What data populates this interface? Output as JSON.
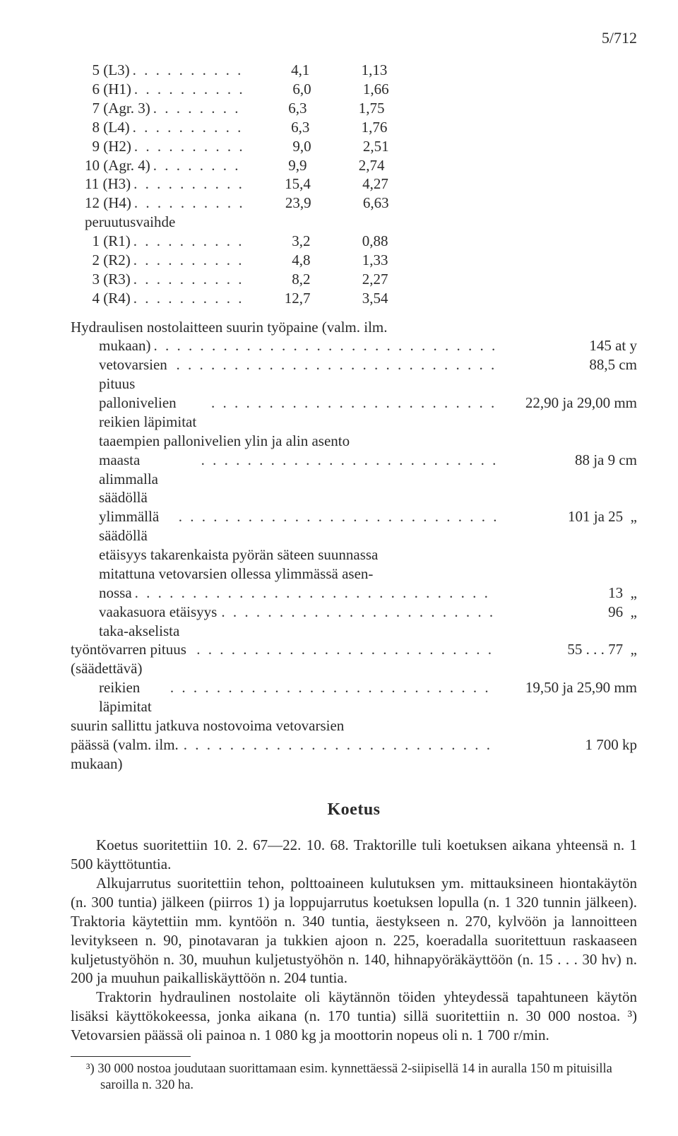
{
  "page_number": "5/712",
  "gear_table": {
    "rows": [
      {
        "label": "  5 (L3)",
        "dots": ". . . . . . . . . .",
        "a": "4,1",
        "b": "1,13"
      },
      {
        "label": "  6 (H1)",
        "dots": ". . . . . . . . . .",
        "a": "6,0",
        "b": "1,66"
      },
      {
        "label": "  7 (Agr. 3)",
        "dots": ". . . . . . . .",
        "a": "6,3",
        "b": "1,75"
      },
      {
        "label": "  8 (L4)",
        "dots": ". . . . . . . . . .",
        "a": "6,3",
        "b": "1,76"
      },
      {
        "label": "  9 (H2)",
        "dots": ". . . . . . . . . .",
        "a": "9,0",
        "b": "2,51"
      },
      {
        "label": "10 (Agr. 4)",
        "dots": ". . . . . . . .",
        "a": "9,9",
        "b": "2,74"
      },
      {
        "label": "11 (H3)",
        "dots": ". . . . . . . . . .",
        "a": "15,4",
        "b": "4,27"
      },
      {
        "label": "12 (H4)",
        "dots": ". . . . . . . . . .",
        "a": "23,9",
        "b": "6,63"
      }
    ],
    "reverse_header": "peruutusvaihde",
    "reverse_rows": [
      {
        "label": "  1 (R1)",
        "dots": ". . . . . . . . . .",
        "a": "3,2",
        "b": "0,88"
      },
      {
        "label": "  2 (R2)",
        "dots": ". . . . . . . . . .",
        "a": "4,8",
        "b": "1,33"
      },
      {
        "label": "  3 (R3)",
        "dots": ". . . . . . . . . .",
        "a": "8,2",
        "b": "2,27"
      },
      {
        "label": "  4 (R4)",
        "dots": ". . . . . . . . . .",
        "a": "12,7",
        "b": "3,54"
      }
    ]
  },
  "params": {
    "head": "Hydraulisen nostolaitteen suurin työpaine (valm. ilm.",
    "rows": [
      {
        "indent": true,
        "label": "mukaan)",
        "val": "145 at y"
      },
      {
        "indent": true,
        "label": "vetovarsien pituus",
        "val": "88,5 cm"
      },
      {
        "indent": true,
        "label": "pallonivelien reikien läpimitat",
        "val": "22,90 ja 29,00 mm"
      },
      {
        "indent": true,
        "label": "taaempien  pallonivelien  ylin  ja  alin  asento",
        "nowrap": true
      },
      {
        "indent": true,
        "label": "maasta alimmalla säädöllä",
        "val": "88 ja 9 cm"
      },
      {
        "indent": true,
        "label": "ylimmällä säädöllä",
        "val": "101 ja 25  „"
      },
      {
        "indent": true,
        "label": "etäisyys takarenkaista pyörän säteen suunnassa",
        "nowrap": true
      },
      {
        "indent": true,
        "label": "mitattuna vetovarsien ollessa ylimmässä asen-",
        "nowrap": true
      },
      {
        "indent": true,
        "label": "nossa",
        "val": "13  „"
      },
      {
        "indent": true,
        "label": "vaakasuora etäisyys taka-akselista",
        "val": "96  „"
      },
      {
        "indent": false,
        "label": "työntövarren pituus (säädettävä)",
        "val": "55 . . . 77  „"
      },
      {
        "indent": true,
        "label": "reikien läpimitat",
        "val": "19,50 ja 25,90 mm"
      },
      {
        "indent": false,
        "label": "suurin sallittu jatkuva nostovoima vetovarsien",
        "nowrap": true
      },
      {
        "indent": false,
        "label": "päässä (valm. ilm. mukaan)",
        "val": "1 700 kp"
      }
    ]
  },
  "section_title": "Koetus",
  "body_paragraphs": [
    "Koetus suoritettiin 10. 2. 67—22. 10. 68. Traktorille tuli koetuksen aikana yhteensä n. 1 500 käyttötuntia.",
    "Alkujarrutus suoritettiin tehon, polttoaineen kulutuksen ym. mittauksineen hiontakäytön (n. 300 tuntia) jälkeen (piirros 1) ja loppujarrutus koetuksen lopulla (n. 1 320 tunnin jälkeen). Traktoria käytettiin mm. kyntöön n. 340 tuntia, äestykseen n. 270, kylvöön ja lannoitteen levitykseen n. 90, pinotavaran ja tukkien ajoon n. 225, koeradalla suoritettuun raskaaseen kuljetustyöhön n. 30, muuhun kuljetustyöhön n. 140, hihnapyöräkäyttöön (n. 15 . . . 30 hv) n. 200 ja muuhun paikalliskäyttöön n. 204 tuntia.",
    "Traktorin hydraulinen nostolaite oli käytännön töiden yhteydessä tapahtuneen käytön lisäksi käyttökokeessa, jonka aikana (n. 170 tuntia) sillä suoritettiin n. 30 000 nostoa. ³) Vetovarsien päässä oli painoa n. 1 080 kg ja moottorin nopeus oli n. 1 700 r/min."
  ],
  "footnote": "³) 30 000 nostoa joudutaan suorittamaan esim. kynnettäessä 2-siipisellä 14 in auralla 150 m pituisilla saroilla n. 320 ha."
}
